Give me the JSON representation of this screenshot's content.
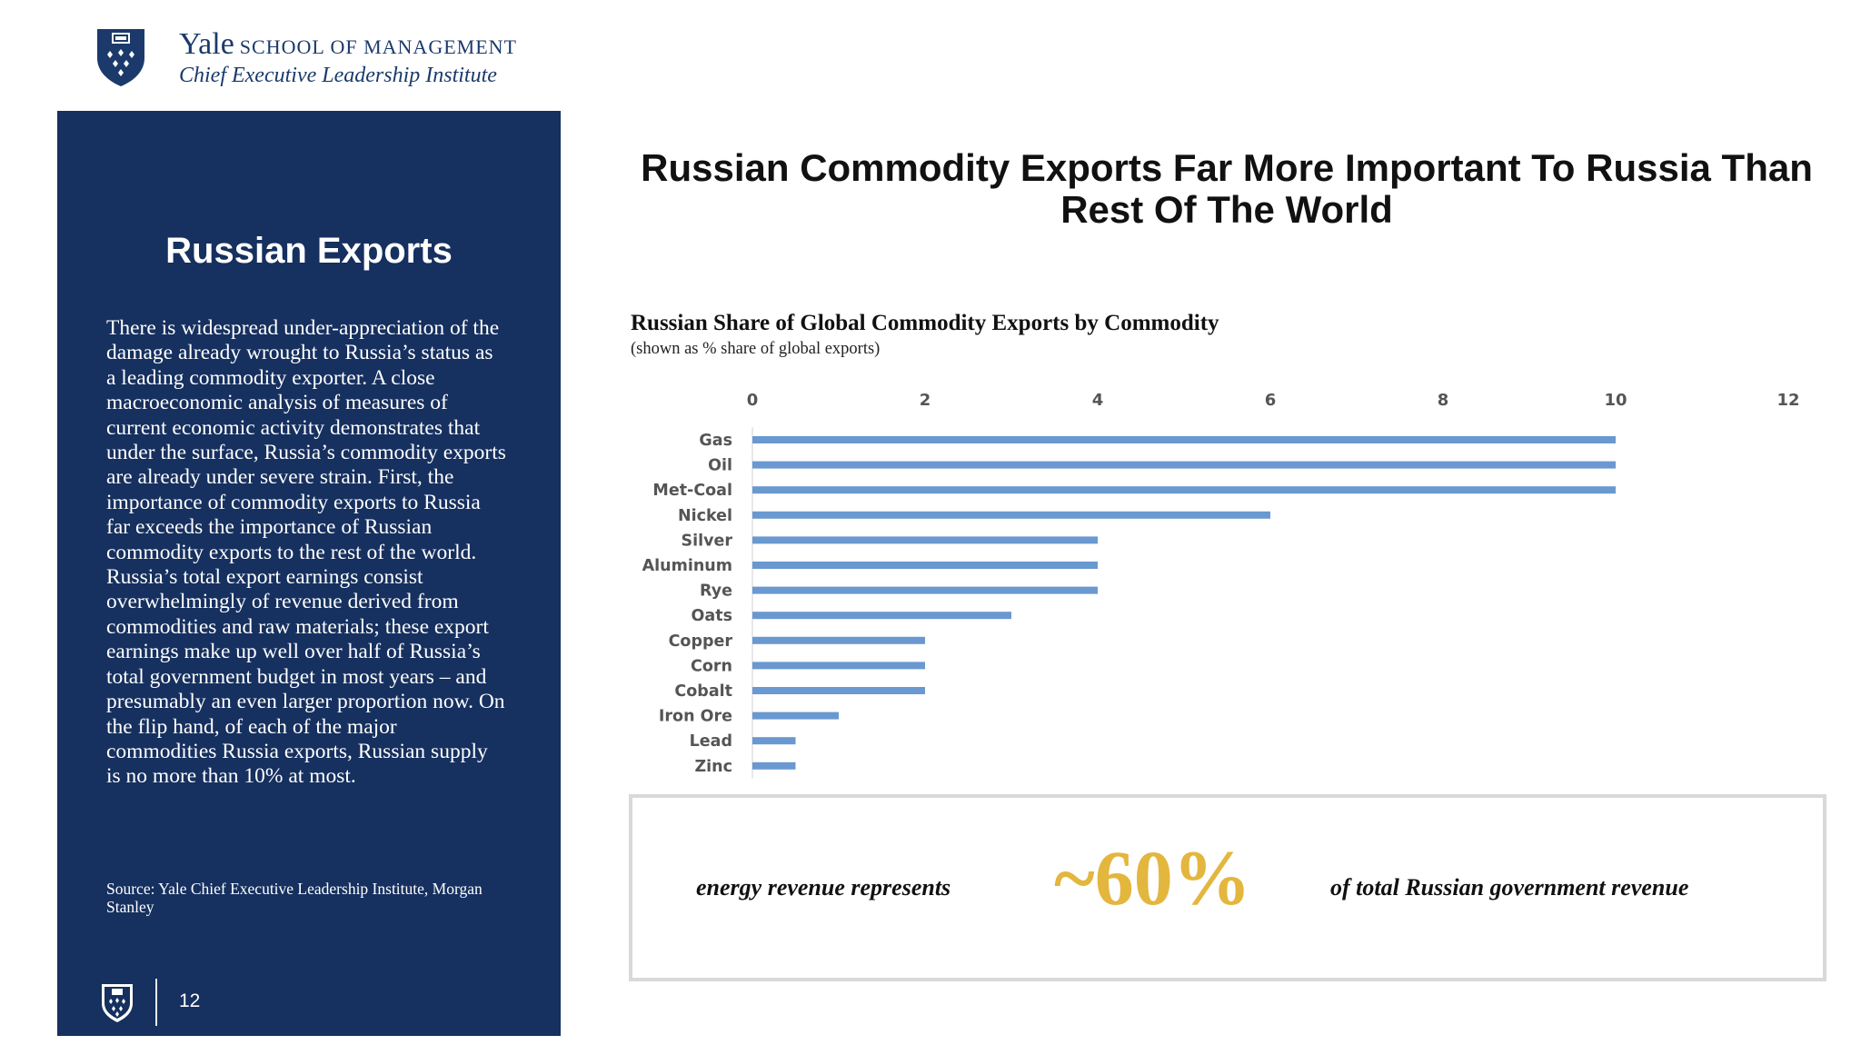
{
  "header": {
    "yale": "Yale",
    "school": "SCHOOL OF MANAGEMENT",
    "institute": "Chief Executive Leadership Institute"
  },
  "panel": {
    "title": "Russian Exports",
    "body": "There is widespread under-appreciation of the damage already wrought to Russia’s status as a leading commodity exporter. A close macroeconomic analysis of measures of current economic activity demonstrates that under the surface, Russia’s commodity exports are already under severe strain. First, the importance of commodity exports to Russia far exceeds the importance of Russian commodity exports to the rest of the world. Russia’s total export earnings consist overwhelmingly of revenue derived from commodities and raw materials; these export earnings make up well over half of Russia’s total government budget in most years – and presumably an even larger proportion now. On the flip hand, of each of the major commodities Russia exports, Russian supply is no more than 10% at most.",
    "source": "Source: Yale Chief Executive Leadership Institute, Morgan Stanley",
    "page_number": "12"
  },
  "main_title": "Russian Commodity Exports Far More Important To Russia Than Rest Of The World",
  "chart_data": {
    "type": "bar",
    "orientation": "horizontal",
    "title": "Russian Share of Global Commodity Exports by Commodity",
    "subtitle": "(shown as % share of global exports)",
    "categories": [
      "Gas",
      "Oil",
      "Met-Coal",
      "Nickel",
      "Silver",
      "Aluminum",
      "Rye",
      "Oats",
      "Copper",
      "Corn",
      "Cobalt",
      "Iron Ore",
      "Lead",
      "Zinc"
    ],
    "values": [
      10,
      10,
      10,
      6,
      4,
      4,
      4,
      3,
      2,
      2,
      2,
      1,
      0.5,
      0.5
    ],
    "xticks": [
      0,
      2,
      4,
      6,
      8,
      10,
      12
    ],
    "xlim": [
      0,
      12
    ],
    "xaxis_position": "top",
    "grid": false,
    "bar_color": "#6a98d0"
  },
  "callout": {
    "left_text": "energy revenue represents",
    "big_value": "~60%",
    "right_text": "of total Russian government revenue",
    "accent_color": "#e3b63e"
  }
}
